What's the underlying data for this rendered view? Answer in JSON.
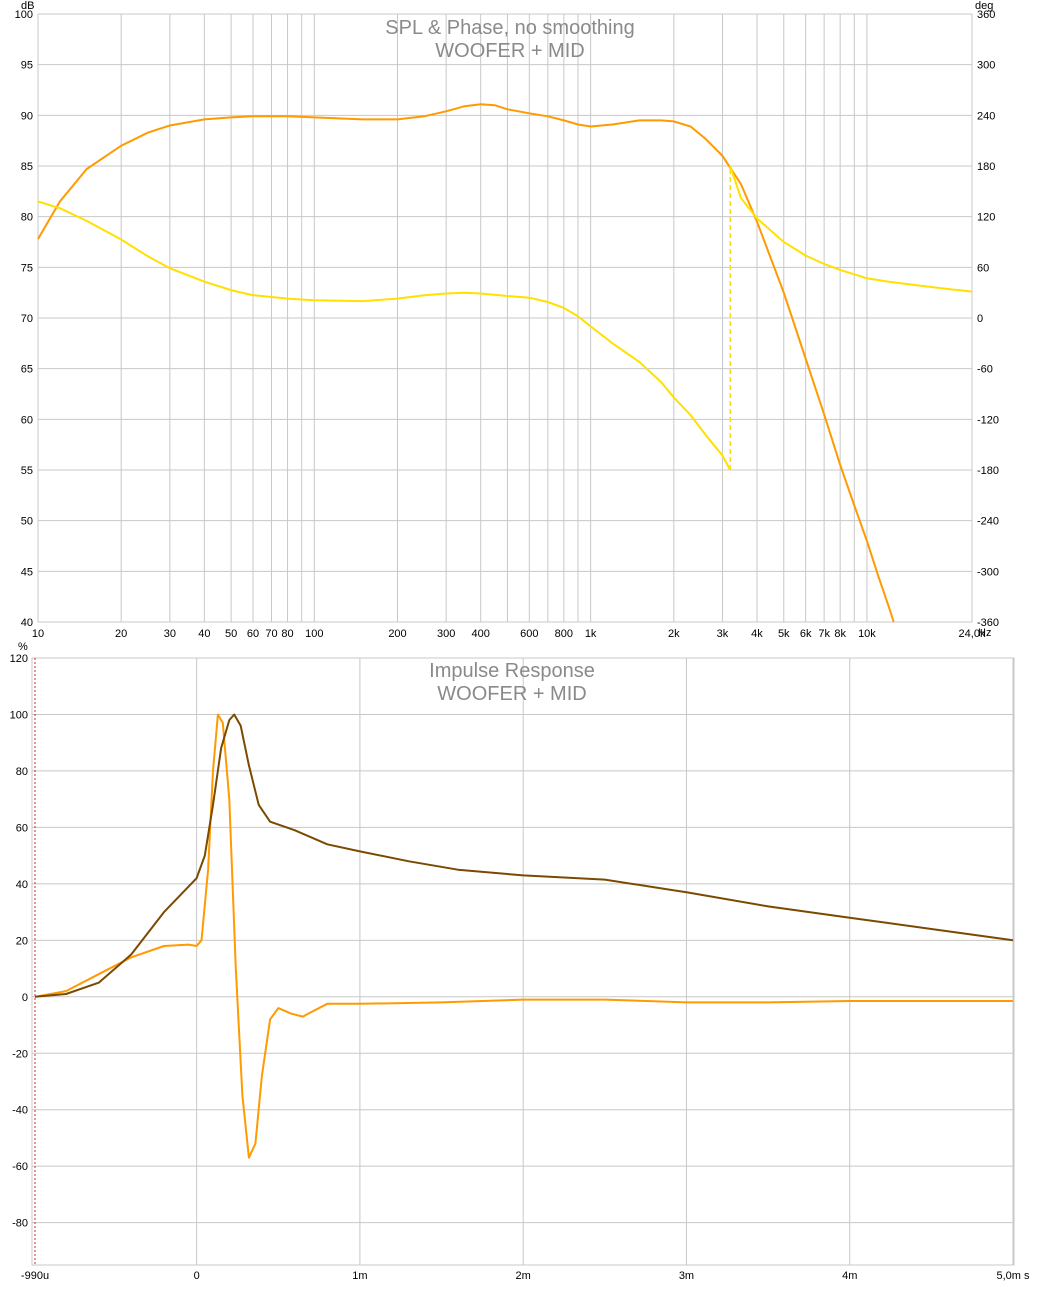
{
  "charts": [
    {
      "title": "SPL & Phase, no smoothing",
      "subtitle": "WOOFER + MID",
      "left_unit": "dB",
      "right_unit": "deg",
      "x_unit": "Hz"
    },
    {
      "title": "Impulse Response",
      "subtitle": "WOOFER + MID",
      "left_unit": "%",
      "x_unit": "s"
    }
  ],
  "chart_data": [
    {
      "type": "line",
      "title": "SPL & Phase, no smoothing",
      "subtitle": "WOOFER + MID",
      "x_scale": "log",
      "xlim": [
        10,
        24000
      ],
      "ylim": [
        40,
        100
      ],
      "y2lim": [
        -360,
        360
      ],
      "grid": true,
      "x_ticks": [
        {
          "v": 10,
          "label": "10"
        },
        {
          "v": 20,
          "label": "20"
        },
        {
          "v": 30,
          "label": "30"
        },
        {
          "v": 40,
          "label": "40"
        },
        {
          "v": 50,
          "label": "50"
        },
        {
          "v": 60,
          "label": "60"
        },
        {
          "v": 70,
          "label": "70"
        },
        {
          "v": 80,
          "label": "80"
        },
        {
          "v": 100,
          "label": "100"
        },
        {
          "v": 200,
          "label": "200"
        },
        {
          "v": 300,
          "label": "300"
        },
        {
          "v": 400,
          "label": "400"
        },
        {
          "v": 600,
          "label": "600"
        },
        {
          "v": 800,
          "label": "800"
        },
        {
          "v": 1000,
          "label": "1k"
        },
        {
          "v": 2000,
          "label": "2k"
        },
        {
          "v": 3000,
          "label": "3k"
        },
        {
          "v": 4000,
          "label": "4k"
        },
        {
          "v": 5000,
          "label": "5k"
        },
        {
          "v": 6000,
          "label": "6k"
        },
        {
          "v": 7000,
          "label": "7k"
        },
        {
          "v": 8000,
          "label": "8k"
        },
        {
          "v": 10000,
          "label": "10k"
        },
        {
          "v": 24000,
          "label": "24,0k"
        }
      ],
      "minor_x": [
        90,
        500,
        700,
        900,
        9000
      ],
      "y_ticks": [
        100,
        95,
        90,
        85,
        80,
        75,
        70,
        65,
        60,
        55,
        50,
        45,
        40
      ],
      "y2_ticks": [
        360,
        300,
        240,
        180,
        120,
        60,
        0,
        -60,
        -120,
        -180,
        -240,
        -300,
        -360
      ],
      "series": [
        {
          "role": "SPL",
          "axis": "left",
          "color": "#ff9a00",
          "points": [
            [
              10,
              77.8
            ],
            [
              12,
              81.5
            ],
            [
              15,
              84.7
            ],
            [
              20,
              87.0
            ],
            [
              25,
              88.3
            ],
            [
              30,
              89.0
            ],
            [
              40,
              89.6
            ],
            [
              50,
              89.8
            ],
            [
              60,
              89.9
            ],
            [
              80,
              89.9
            ],
            [
              100,
              89.8
            ],
            [
              150,
              89.6
            ],
            [
              200,
              89.6
            ],
            [
              250,
              89.9
            ],
            [
              300,
              90.4
            ],
            [
              350,
              90.9
            ],
            [
              400,
              91.1
            ],
            [
              450,
              91.0
            ],
            [
              500,
              90.6
            ],
            [
              600,
              90.2
            ],
            [
              700,
              89.9
            ],
            [
              800,
              89.5
            ],
            [
              900,
              89.1
            ],
            [
              1000,
              88.9
            ],
            [
              1200,
              89.1
            ],
            [
              1500,
              89.5
            ],
            [
              1800,
              89.5
            ],
            [
              2000,
              89.4
            ],
            [
              2300,
              88.9
            ],
            [
              2600,
              87.7
            ],
            [
              3000,
              86.0
            ],
            [
              3500,
              83.2
            ],
            [
              4000,
              79.5
            ],
            [
              5000,
              72.5
            ],
            [
              6000,
              66.0
            ],
            [
              7000,
              60.5
            ],
            [
              8000,
              55.5
            ],
            [
              9000,
              51.5
            ],
            [
              10000,
              48.0
            ],
            [
              11000,
              44.5
            ],
            [
              12000,
              41.5
            ],
            [
              12500,
              40.0
            ]
          ]
        },
        {
          "role": "Phase",
          "axis": "right",
          "color": "#ffe000",
          "points": [
            [
              10,
              138
            ],
            [
              12,
              130
            ],
            [
              15,
              115
            ],
            [
              20,
              93
            ],
            [
              25,
              73
            ],
            [
              30,
              59
            ],
            [
              40,
              43
            ],
            [
              50,
              33
            ],
            [
              60,
              27
            ],
            [
              80,
              23
            ],
            [
              100,
              21
            ],
            [
              150,
              20
            ],
            [
              200,
              23
            ],
            [
              250,
              27
            ],
            [
              300,
              29
            ],
            [
              350,
              30
            ],
            [
              400,
              29
            ],
            [
              500,
              26
            ],
            [
              600,
              24
            ],
            [
              700,
              19
            ],
            [
              800,
              12
            ],
            [
              900,
              2
            ],
            [
              1000,
              -10
            ],
            [
              1200,
              -30
            ],
            [
              1500,
              -52
            ],
            [
              1800,
              -76
            ],
            [
              2000,
              -94
            ],
            [
              2300,
              -115
            ],
            [
              2600,
              -138
            ],
            [
              3000,
              -163
            ],
            [
              3200,
              -180
            ],
            [
              3200,
              180
            ],
            [
              3500,
              142
            ],
            [
              4000,
              118
            ],
            [
              5000,
              90
            ],
            [
              6000,
              74
            ],
            [
              7000,
              64
            ],
            [
              8000,
              57
            ],
            [
              10000,
              47
            ],
            [
              12000,
              43
            ],
            [
              15000,
              39
            ],
            [
              20000,
              34
            ],
            [
              23000,
              32
            ],
            [
              24000,
              31
            ]
          ]
        }
      ]
    },
    {
      "type": "line",
      "title": "Impulse Response",
      "subtitle": "WOOFER + MID",
      "x_scale": "linear",
      "xlim": [
        -0.00099,
        0.005
      ],
      "ylim": [
        -95,
        120
      ],
      "grid": true,
      "x_ticks": [
        {
          "v": -0.00099,
          "label": "-990u"
        },
        {
          "v": 0,
          "label": "0"
        },
        {
          "v": 0.001,
          "label": "1m"
        },
        {
          "v": 0.002,
          "label": "2m"
        },
        {
          "v": 0.003,
          "label": "3m"
        },
        {
          "v": 0.004,
          "label": "4m"
        },
        {
          "v": 0.005,
          "label": "5,0m s"
        }
      ],
      "y_ticks": [
        120,
        100,
        80,
        60,
        40,
        20,
        0,
        -20,
        -40,
        -60,
        -80
      ],
      "series": [
        {
          "role": "Impulse",
          "color": "#ff9a00",
          "points": [
            [
              -0.00099,
              0
            ],
            [
              -0.0008,
              2
            ],
            [
              -0.0006,
              8
            ],
            [
              -0.0004,
              14
            ],
            [
              -0.0002,
              18
            ],
            [
              -5e-05,
              18.5
            ],
            [
              0,
              18
            ],
            [
              3e-05,
              20
            ],
            [
              7e-05,
              45
            ],
            [
              0.0001,
              80
            ],
            [
              0.00013,
              100
            ],
            [
              0.00016,
              97
            ],
            [
              0.0002,
              70
            ],
            [
              0.00024,
              10
            ],
            [
              0.00028,
              -35
            ],
            [
              0.00032,
              -57
            ],
            [
              0.00036,
              -52
            ],
            [
              0.0004,
              -28
            ],
            [
              0.00045,
              -8
            ],
            [
              0.0005,
              -4
            ],
            [
              0.00058,
              -6
            ],
            [
              0.00065,
              -7
            ],
            [
              0.0007,
              -5.5
            ],
            [
              0.0008,
              -2.5
            ],
            [
              0.001,
              -2.5
            ],
            [
              0.0015,
              -2
            ],
            [
              0.002,
              -1
            ],
            [
              0.0025,
              -1
            ],
            [
              0.003,
              -2
            ],
            [
              0.0035,
              -2
            ],
            [
              0.004,
              -1.5
            ],
            [
              0.005,
              -1.5
            ]
          ]
        },
        {
          "role": "Envelope",
          "color": "#7a4a00",
          "points": [
            [
              -0.00099,
              0
            ],
            [
              -0.0008,
              1
            ],
            [
              -0.0006,
              5
            ],
            [
              -0.0004,
              15
            ],
            [
              -0.0002,
              30
            ],
            [
              0,
              42
            ],
            [
              5e-05,
              50
            ],
            [
              0.0001,
              68
            ],
            [
              0.00015,
              88
            ],
            [
              0.0002,
              98
            ],
            [
              0.00023,
              100
            ],
            [
              0.00027,
              96
            ],
            [
              0.00032,
              82
            ],
            [
              0.00038,
              68
            ],
            [
              0.00045,
              62
            ],
            [
              0.0006,
              59
            ],
            [
              0.0008,
              54
            ],
            [
              0.001,
              51.5
            ],
            [
              0.0013,
              48
            ],
            [
              0.0016,
              45
            ],
            [
              0.002,
              43
            ],
            [
              0.0025,
              41.5
            ],
            [
              0.003,
              37
            ],
            [
              0.0035,
              32
            ],
            [
              0.004,
              28
            ],
            [
              0.0045,
              24
            ],
            [
              0.005,
              20
            ]
          ]
        }
      ]
    }
  ]
}
